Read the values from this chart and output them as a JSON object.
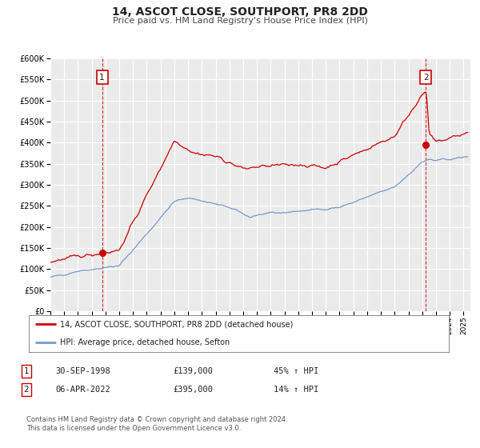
{
  "title": "14, ASCOT CLOSE, SOUTHPORT, PR8 2DD",
  "subtitle": "Price paid vs. HM Land Registry's House Price Index (HPI)",
  "title_fontsize": 10,
  "subtitle_fontsize": 8,
  "ylim": [
    0,
    600000
  ],
  "yticks": [
    0,
    50000,
    100000,
    150000,
    200000,
    250000,
    300000,
    350000,
    400000,
    450000,
    500000,
    550000,
    600000
  ],
  "xlim_start": 1995.0,
  "xlim_end": 2025.5,
  "red_color": "#cc0000",
  "blue_color": "#7799cc",
  "background_color": "#ebebeb",
  "grid_color": "#ffffff",
  "sale1_x": 1998.75,
  "sale1_y": 139000,
  "sale2_x": 2022.27,
  "sale2_y": 395000,
  "legend_label_red": "14, ASCOT CLOSE, SOUTHPORT, PR8 2DD (detached house)",
  "legend_label_blue": "HPI: Average price, detached house, Sefton",
  "table_row1": [
    "1",
    "30-SEP-1998",
    "£139,000",
    "45% ↑ HPI"
  ],
  "table_row2": [
    "2",
    "06-APR-2022",
    "£395,000",
    "14% ↑ HPI"
  ],
  "footnote": "Contains HM Land Registry data © Crown copyright and database right 2024.\nThis data is licensed under the Open Government Licence v3.0.",
  "footnote_fontsize": 6.0
}
